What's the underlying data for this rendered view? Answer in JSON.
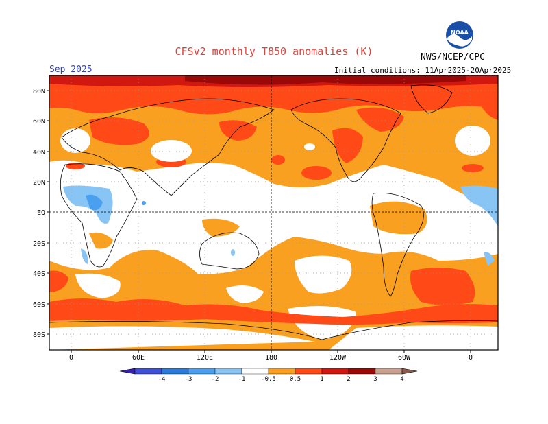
{
  "header": {
    "title": "CFSv2 monthly T850 anomalies (K)",
    "agency": "NWS/NCEP/CPC",
    "month": "Sep 2025",
    "initial_conditions": "Initial conditions: 11Apr2025-20Apr2025",
    "logo_text": "NOAA"
  },
  "map": {
    "lat_labels": [
      "80N",
      "60N",
      "40N",
      "20N",
      "EQ",
      "20S",
      "40S",
      "60S",
      "80S"
    ],
    "lon_labels": [
      "0",
      "60E",
      "120E",
      "180",
      "120W",
      "60W",
      "0"
    ]
  },
  "colorbar": {
    "labels": [
      "-4",
      "-3",
      "-2",
      "-1",
      "-0.5",
      "0.5",
      "1",
      "2",
      "3",
      "4"
    ],
    "colors": [
      "#3a1fb0",
      "#3f4fd6",
      "#2a7ad8",
      "#4aa0ee",
      "#88c4f4",
      "#ffffff",
      "#f9a020",
      "#ff4a18",
      "#d01810",
      "#9a0808",
      "#c8a090",
      "#8a5a4a"
    ]
  }
}
